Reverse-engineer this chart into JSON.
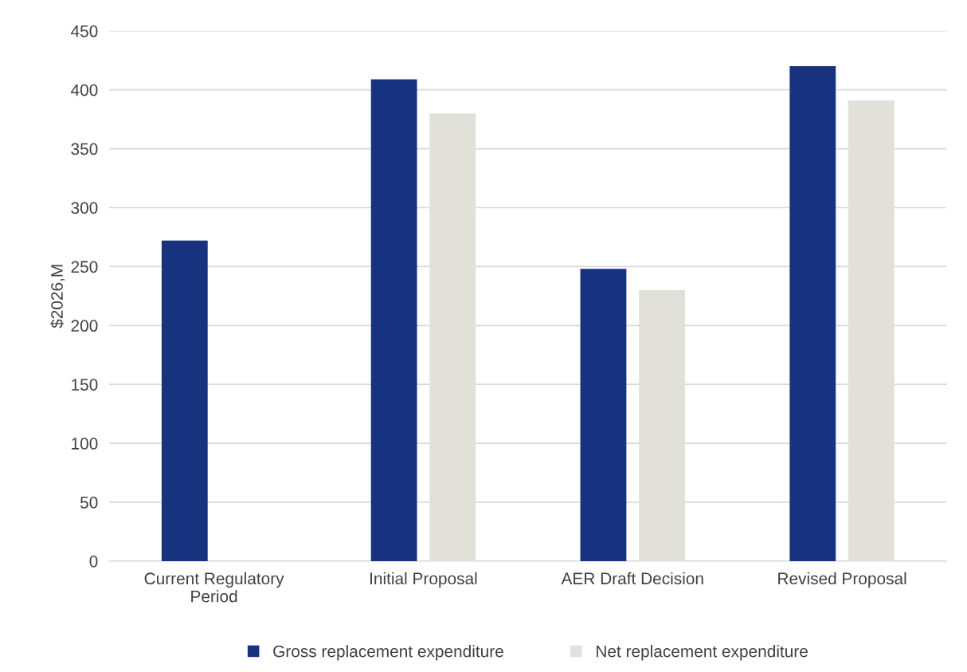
{
  "chart_data": {
    "type": "bar",
    "ylabel": "$2026,M",
    "categories": [
      "Current Regulatory Period",
      "Initial Proposal",
      "AER Draft Decision",
      "Revised Proposal"
    ],
    "series": [
      {
        "name": "Gross replacement expenditure",
        "color": "#17337f",
        "values": [
          272,
          409,
          248,
          420
        ]
      },
      {
        "name": "Net replacement expenditure",
        "color": "#e1e1d9",
        "values": [
          null,
          380,
          230,
          391
        ]
      }
    ],
    "ylim": [
      0,
      450
    ],
    "yticks": [
      0,
      50,
      100,
      150,
      200,
      250,
      300,
      350,
      400,
      450
    ],
    "grid": "y",
    "legend": "bottom"
  }
}
